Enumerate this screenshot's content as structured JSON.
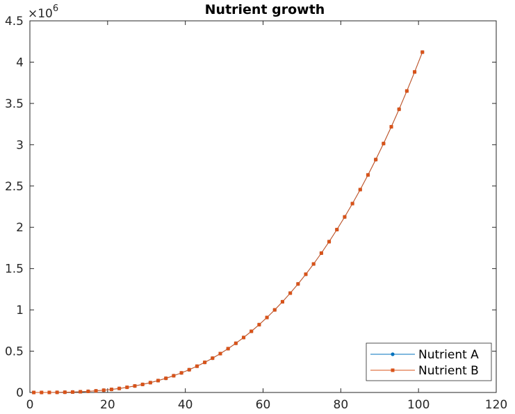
{
  "chart_data": {
    "type": "line",
    "title": "Nutrient growth",
    "xlabel": "",
    "ylabel": "",
    "xlim": [
      0,
      120
    ],
    "ylim": [
      0,
      4500000
    ],
    "x_ticks": [
      "0",
      "20",
      "40",
      "60",
      "80",
      "100",
      "120"
    ],
    "y_ticks": [
      "0",
      "0.5",
      "1",
      "1.5",
      "2",
      "2.5",
      "3",
      "3.5",
      "4",
      "4.5"
    ],
    "y_exponent_label": "×10",
    "y_exponent_power": "6",
    "grid": false,
    "legend_position": "bottom-right",
    "series": [
      {
        "name": "Nutrient A",
        "color": "#0072BD",
        "marker": "dot",
        "x": [
          1,
          3,
          5,
          7,
          9,
          11,
          13,
          15,
          17,
          19,
          21,
          23,
          25,
          27,
          29,
          31,
          33,
          35,
          37,
          39,
          41,
          43,
          45,
          47,
          49,
          51,
          53,
          55,
          57,
          59,
          61,
          63,
          65,
          67,
          69,
          71,
          73,
          75,
          77,
          79,
          81,
          83,
          85,
          87,
          89,
          91,
          93,
          95,
          97,
          99,
          101
        ],
        "y": [
          4,
          108,
          500,
          1372,
          2916,
          5324,
          8788,
          13500,
          19652,
          27436,
          37044,
          48668,
          62500,
          78732,
          97556,
          119164,
          143748,
          171500,
          202612,
          237276,
          275684,
          318028,
          364500,
          415292,
          470596,
          530604,
          595508,
          665500,
          740772,
          821516,
          907924,
          1000188,
          1098500,
          1203052,
          1314036,
          1431644,
          1556068,
          1687500,
          1826132,
          1972156,
          2125764,
          2287148,
          2456500,
          2634012,
          2819876,
          3014284,
          3217428,
          3429500,
          3650692,
          3881196,
          4121204
        ]
      },
      {
        "name": "Nutrient B",
        "color": "#D95319",
        "marker": "square",
        "x": [
          1,
          3,
          5,
          7,
          9,
          11,
          13,
          15,
          17,
          19,
          21,
          23,
          25,
          27,
          29,
          31,
          33,
          35,
          37,
          39,
          41,
          43,
          45,
          47,
          49,
          51,
          53,
          55,
          57,
          59,
          61,
          63,
          65,
          67,
          69,
          71,
          73,
          75,
          77,
          79,
          81,
          83,
          85,
          87,
          89,
          91,
          93,
          95,
          97,
          99,
          101
        ],
        "y": [
          4,
          108,
          500,
          1372,
          2916,
          5324,
          8788,
          13500,
          19652,
          27436,
          37044,
          48668,
          62500,
          78732,
          97556,
          119164,
          143748,
          171500,
          202612,
          237276,
          275684,
          318028,
          364500,
          415292,
          470596,
          530604,
          595508,
          665500,
          740772,
          821516,
          907924,
          1000188,
          1098500,
          1203052,
          1314036,
          1431644,
          1556068,
          1687500,
          1826132,
          1972156,
          2125764,
          2287148,
          2456500,
          2634012,
          2819876,
          3014284,
          3217428,
          3429500,
          3650692,
          3881196,
          4121204
        ]
      }
    ]
  }
}
